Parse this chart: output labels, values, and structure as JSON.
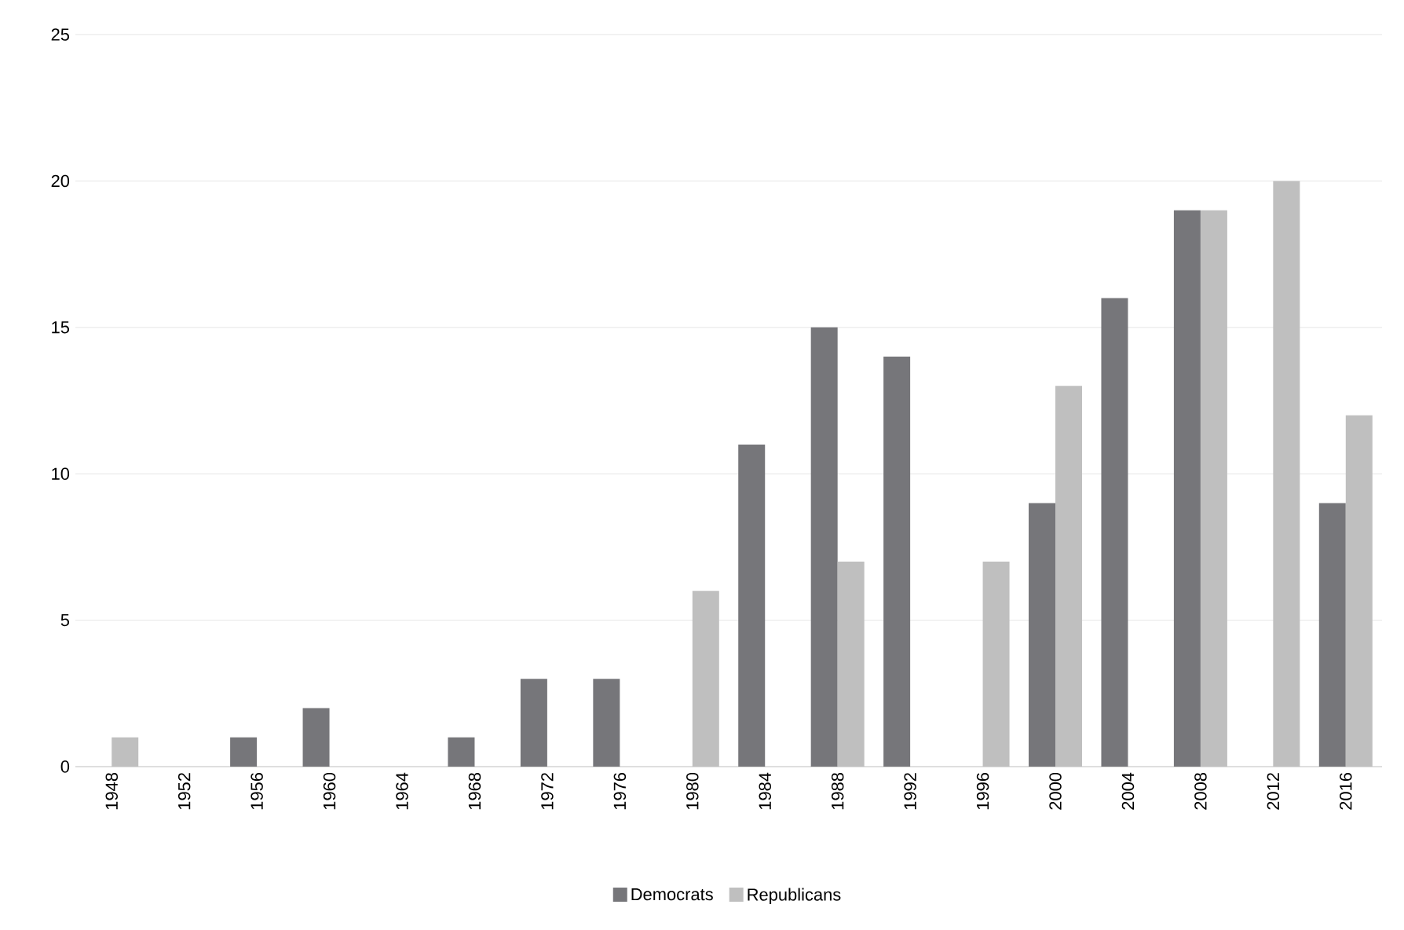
{
  "chart_data": {
    "type": "bar",
    "categories": [
      "1948",
      "1952",
      "1956",
      "1960",
      "1964",
      "1968",
      "1972",
      "1976",
      "1980",
      "1984",
      "1988",
      "1992",
      "1996",
      "2000",
      "2004",
      "2008",
      "2012",
      "2016"
    ],
    "series": [
      {
        "name": "Democrats",
        "color": "#76767a",
        "values": [
          0,
          0,
          1,
          2,
          0,
          1,
          3,
          3,
          0,
          11,
          15,
          14,
          0,
          9,
          16,
          19,
          0,
          9
        ]
      },
      {
        "name": "Republicans",
        "color": "#bfbfbf",
        "values": [
          1,
          0,
          0,
          0,
          0,
          0,
          0,
          0,
          6,
          0,
          7,
          0,
          7,
          13,
          0,
          19,
          20,
          12
        ]
      }
    ],
    "ylim": [
      0,
      25
    ],
    "yticks": [
      0,
      5,
      10,
      15,
      20,
      25
    ],
    "grid": "y",
    "legend": "bottom"
  }
}
